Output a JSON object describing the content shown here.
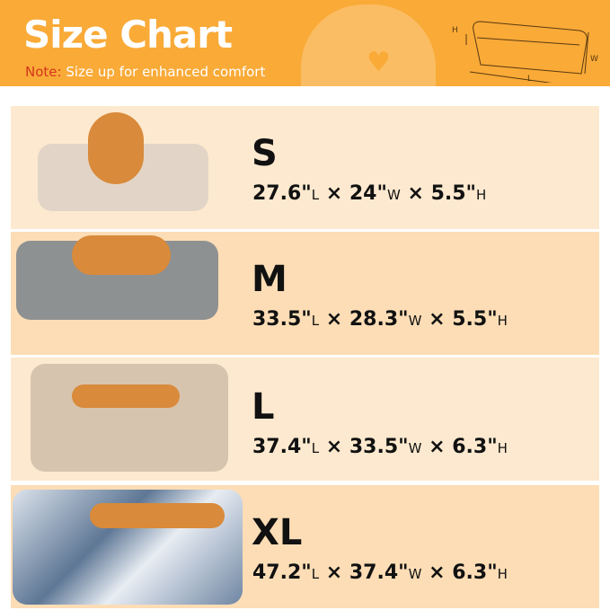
{
  "header": {
    "title": "Size Chart",
    "note_label": "Note:",
    "note_text": " Size up for enhanced comfort",
    "diagram_labels": {
      "h": "H",
      "w": "W",
      "l": "L"
    }
  },
  "colors": {
    "header": "#F9AA37",
    "row_light": "#FDE9CF",
    "row_dark": "#FCDDB6",
    "note_label": "#D5361E"
  },
  "sizes": [
    {
      "label": "S",
      "length": "27.6\"",
      "l_unit": "L",
      "width": "24\"",
      "w_unit": "W",
      "height": "5.5\"",
      "h_unit": "H"
    },
    {
      "label": "M",
      "length": "33.5\"",
      "l_unit": "L",
      "width": "28.3\"",
      "w_unit": "W",
      "height": "5.5\"",
      "h_unit": "H"
    },
    {
      "label": "L",
      "length": "37.4\"",
      "l_unit": "L",
      "width": "33.5\"",
      "w_unit": "W",
      "height": "6.3\"",
      "h_unit": "H"
    },
    {
      "label": "XL",
      "length": "47.2\"",
      "l_unit": "L",
      "width": "37.4\"",
      "w_unit": "W",
      "height": "6.3\"",
      "h_unit": "H"
    }
  ],
  "separator": " × "
}
